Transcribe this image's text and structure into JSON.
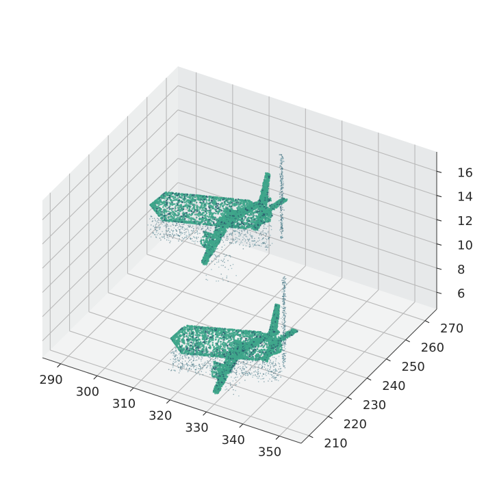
{
  "chart_data": {
    "type": "scatter",
    "projection": "3d",
    "title": "",
    "xlabel": "",
    "ylabel": "",
    "zlabel": "",
    "xlim": [
      285,
      356
    ],
    "ylim": [
      206,
      276
    ],
    "zlim": [
      4.6,
      17.6
    ],
    "x_ticks": [
      "290",
      "300",
      "310",
      "320",
      "330",
      "340",
      "350"
    ],
    "y_ticks": [
      "210",
      "220",
      "230",
      "240",
      "250",
      "260",
      "270"
    ],
    "z_ticks": [
      "6",
      "8",
      "10",
      "12",
      "14",
      "16"
    ],
    "x_tick_values": [
      290,
      300,
      310,
      320,
      330,
      340,
      350
    ],
    "y_tick_values": [
      210,
      220,
      230,
      240,
      250,
      260,
      270
    ],
    "z_tick_values": [
      6,
      8,
      10,
      12,
      14,
      16
    ],
    "grid": true,
    "legend": "none",
    "colors": {
      "body": "#3fa68b",
      "edge": "#2b5d6e",
      "pane": "#eef0f0",
      "grid": "#b8b8b8"
    },
    "objects": [
      {
        "shape": "airplane",
        "nose": [
          287,
          258,
          9.2
        ],
        "tail": [
          320,
          258,
          11.5
        ],
        "wing_root": [
          306,
          258,
          10.4
        ],
        "wingspan": 34,
        "fuselage_radius": 1.1,
        "plume_top": [
          323,
          258,
          17.0
        ]
      },
      {
        "shape": "airplane",
        "nose": [
          315,
          216,
          7.6
        ],
        "tail": [
          345,
          216,
          9.8
        ],
        "wing_root": [
          331,
          216,
          8.7
        ],
        "wingspan": 32,
        "fuselage_radius": 1.1,
        "plume_top": [
          346,
          216,
          15.8
        ]
      }
    ]
  }
}
